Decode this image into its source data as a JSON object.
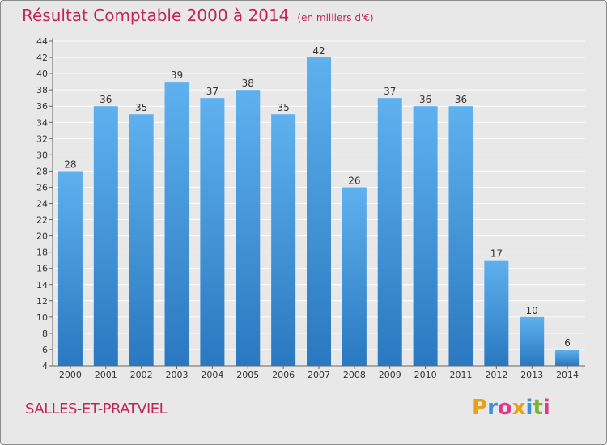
{
  "header": {
    "title": "Résultat Comptable 2000 à 2014",
    "subtitle": "(en milliers d'€)"
  },
  "footer": {
    "commune": "SALLES-ET-PRATVIEL",
    "logo_letters": [
      {
        "ch": "P",
        "color": "#e8a21a"
      },
      {
        "ch": "r",
        "color": "#3f8fd6"
      },
      {
        "ch": "o",
        "color": "#e23a8b"
      },
      {
        "ch": "x",
        "color": "#e8a21a"
      },
      {
        "ch": "i",
        "color": "#3f8fd6"
      },
      {
        "ch": "t",
        "color": "#7ab32e"
      },
      {
        "ch": "i",
        "color": "#e23a8b"
      }
    ]
  },
  "colors": {
    "bar_top": "#5eb1ee",
    "bar_bottom": "#2a78c0",
    "grid": "#ffffff",
    "title": "#c0265a"
  },
  "chart_data": {
    "type": "bar",
    "title": "Résultat Comptable 2000 à 2014",
    "subtitle": "(en milliers d'€)",
    "xlabel": "",
    "ylabel": "",
    "categories": [
      "2000",
      "2001",
      "2002",
      "2003",
      "2004",
      "2005",
      "2006",
      "2007",
      "2008",
      "2009",
      "2010",
      "2011",
      "2012",
      "2013",
      "2014"
    ],
    "values": [
      28,
      36,
      35,
      39,
      37,
      38,
      35,
      42,
      26,
      37,
      36,
      36,
      17,
      10,
      6
    ],
    "ylim": [
      4,
      44
    ],
    "yticks": [
      4,
      6,
      8,
      10,
      12,
      14,
      16,
      18,
      20,
      22,
      24,
      26,
      28,
      30,
      32,
      34,
      36,
      38,
      40,
      42,
      44
    ],
    "grid": true
  }
}
